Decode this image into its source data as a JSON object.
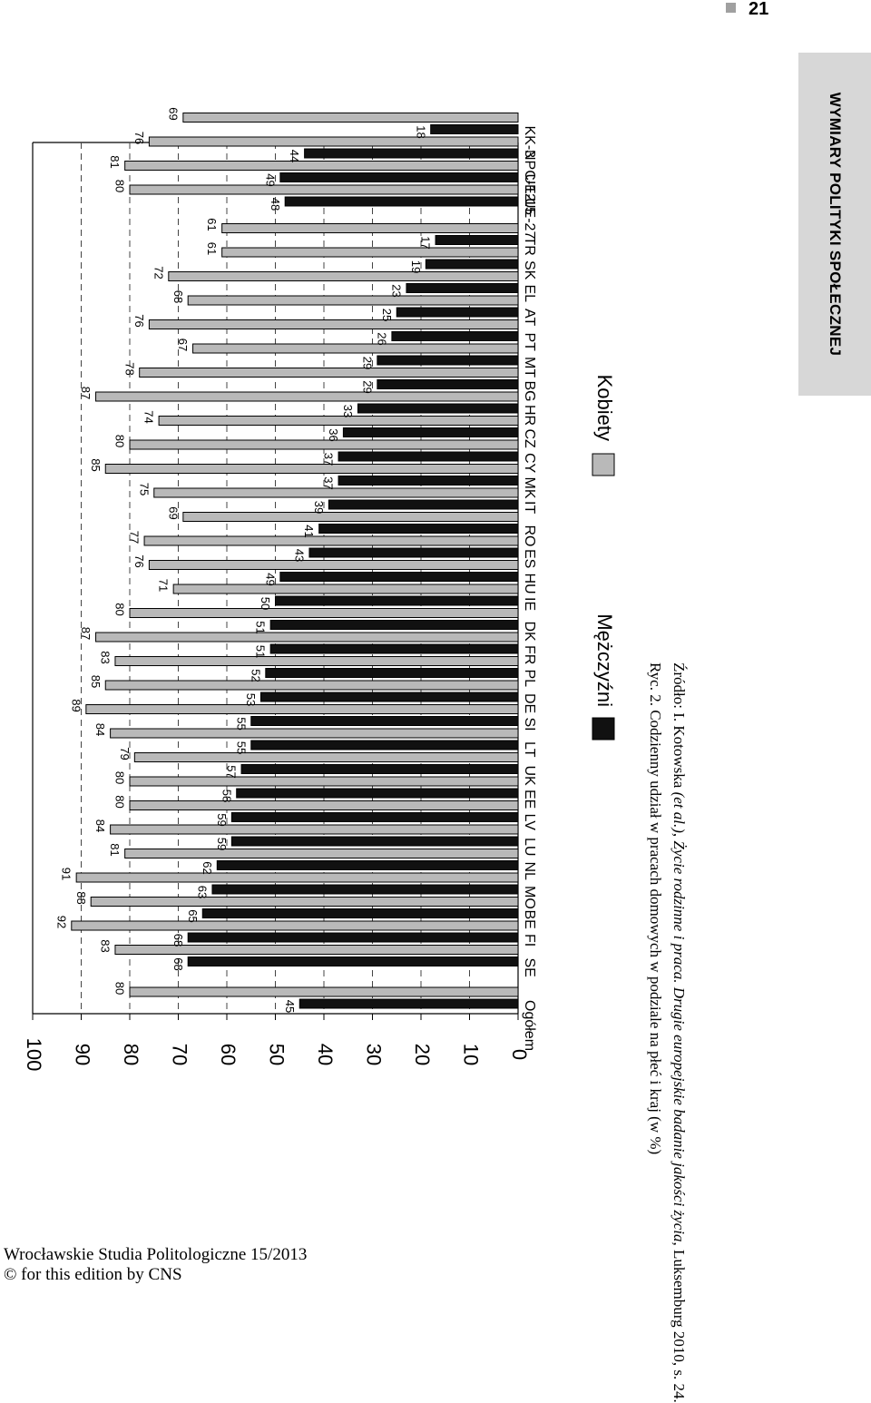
{
  "page": {
    "number": "21",
    "side_tab": "WYMIARY POLITYKI SPOŁECZNEJ",
    "caption": "Ryc. 2. Codzienny udział w pracach domowych w podziale na płeć i kraj (w %)",
    "source_prefix": "Źródło: I. Kotowska ",
    "source_etal": "(et al.)",
    "source_mid": ", ",
    "source_title": "Życie rodzinne i praca. Drugie europejskie badanie jakości życia",
    "source_suffix": ", Luksemburg 2010, s. 24.",
    "journal_line1": "Wrocławskie Studia Politologiczne 15/2013",
    "journal_line2": "© for this edition by CNS"
  },
  "colors": {
    "men": "#111111",
    "women": "#b9b9b9"
  },
  "chart_data": {
    "type": "bar",
    "orientation": "vertical bars, page rotated 90°",
    "title": "",
    "xlabel": "",
    "ylabel": "",
    "ylim": [
      0,
      100
    ],
    "yticks": [
      0,
      10,
      20,
      30,
      40,
      50,
      60,
      70,
      80,
      90,
      100
    ],
    "grid": "dashed horizontal lines at 10–90",
    "legend_position": "bottom",
    "categories": [
      "Ogółem",
      "SE",
      "FI",
      "BE",
      "MO",
      "NL",
      "LU",
      "LV",
      "EE",
      "UK",
      "LT",
      "SI",
      "DE",
      "PL",
      "FR",
      "DK",
      "IE",
      "HU",
      "ES",
      "RO",
      "IT",
      "MK",
      "CY",
      "CZ",
      "HR",
      "BG",
      "MT",
      "PT",
      "AT",
      "EL",
      "SK",
      "TR",
      "UE-27",
      "UE-15",
      "NPC-12",
      "KK-3"
    ],
    "series": [
      {
        "name": "Mężczyźni",
        "values": [
          45,
          68,
          68,
          65,
          63,
          62,
          59,
          59,
          58,
          57,
          55,
          55,
          53,
          52,
          51,
          51,
          50,
          49,
          43,
          41,
          39,
          37,
          37,
          36,
          33,
          29,
          29,
          26,
          25,
          23,
          19,
          17,
          48,
          49,
          44,
          18
        ]
      },
      {
        "name": "Kobiety",
        "values": [
          80,
          83,
          92,
          88,
          91,
          81,
          84,
          80,
          80,
          79,
          84,
          89,
          85,
          83,
          87,
          80,
          71,
          76,
          77,
          69,
          75,
          85,
          80,
          74,
          87,
          78,
          67,
          76,
          68,
          72,
          61,
          61,
          80,
          81,
          76,
          69
        ]
      }
    ]
  }
}
